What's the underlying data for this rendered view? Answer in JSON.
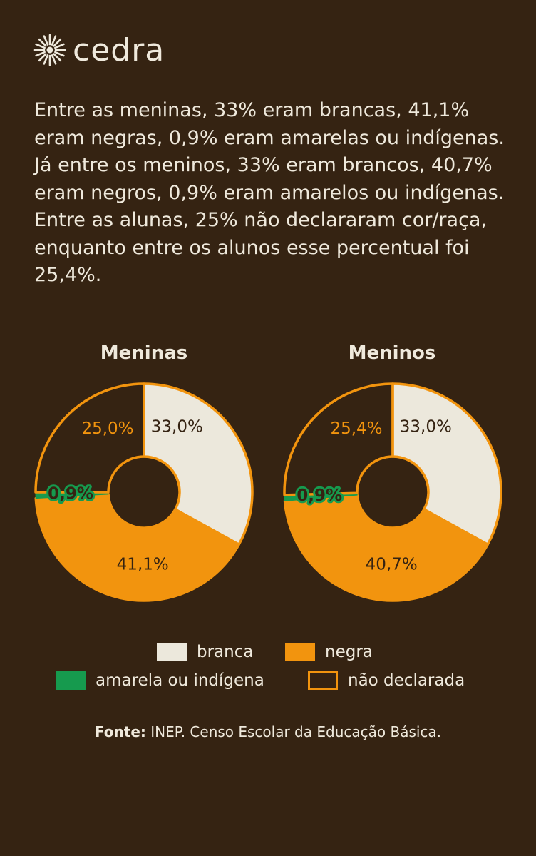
{
  "brand": {
    "name": "cedra",
    "logo_icon": "sun-burst-icon"
  },
  "intro_text": "Entre as meninas, 33% eram brancas, 41,1% eram negras, 0,9% eram amarelas ou indígenas. Já entre os meninos, 33% eram brancos, 40,7% eram negros, 0,9% eram amarelos ou indígenas. Entre as alunas, 25% não declararam cor/raça, enquanto entre os alunos esse percentual foi 25,4%.",
  "colors": {
    "background": "#352312",
    "branca": "#ece8dc",
    "negra": "#f2940e",
    "amarela": "#169a4e",
    "nao_declarada": "#f2940e",
    "text": "#efe9dc",
    "dark_text": "#352312"
  },
  "chart_data": [
    {
      "type": "pie",
      "title": "Meninas",
      "categories": [
        "branca",
        "negra",
        "amarela ou indígena",
        "não declarada"
      ],
      "values": [
        33.0,
        41.1,
        0.9,
        25.0
      ],
      "labels": [
        "33,0%",
        "41,1%",
        "0,9%",
        "25,0%"
      ]
    },
    {
      "type": "pie",
      "title": "Meninos",
      "categories": [
        "branca",
        "negra",
        "amarela ou indígena",
        "não declarada"
      ],
      "values": [
        33.0,
        40.7,
        0.9,
        25.4
      ],
      "labels": [
        "33,0%",
        "40,7%",
        "0,9%",
        "25,4%"
      ]
    }
  ],
  "legend": [
    {
      "label": "branca",
      "key": "branca"
    },
    {
      "label": "negra",
      "key": "negra"
    },
    {
      "label": "amarela ou indígena",
      "key": "amarela"
    },
    {
      "label": "não declarada",
      "key": "nao_declarada"
    }
  ],
  "source": {
    "prefix": "Fonte:",
    "text": " INEP. Censo Escolar da Educação Básica."
  }
}
